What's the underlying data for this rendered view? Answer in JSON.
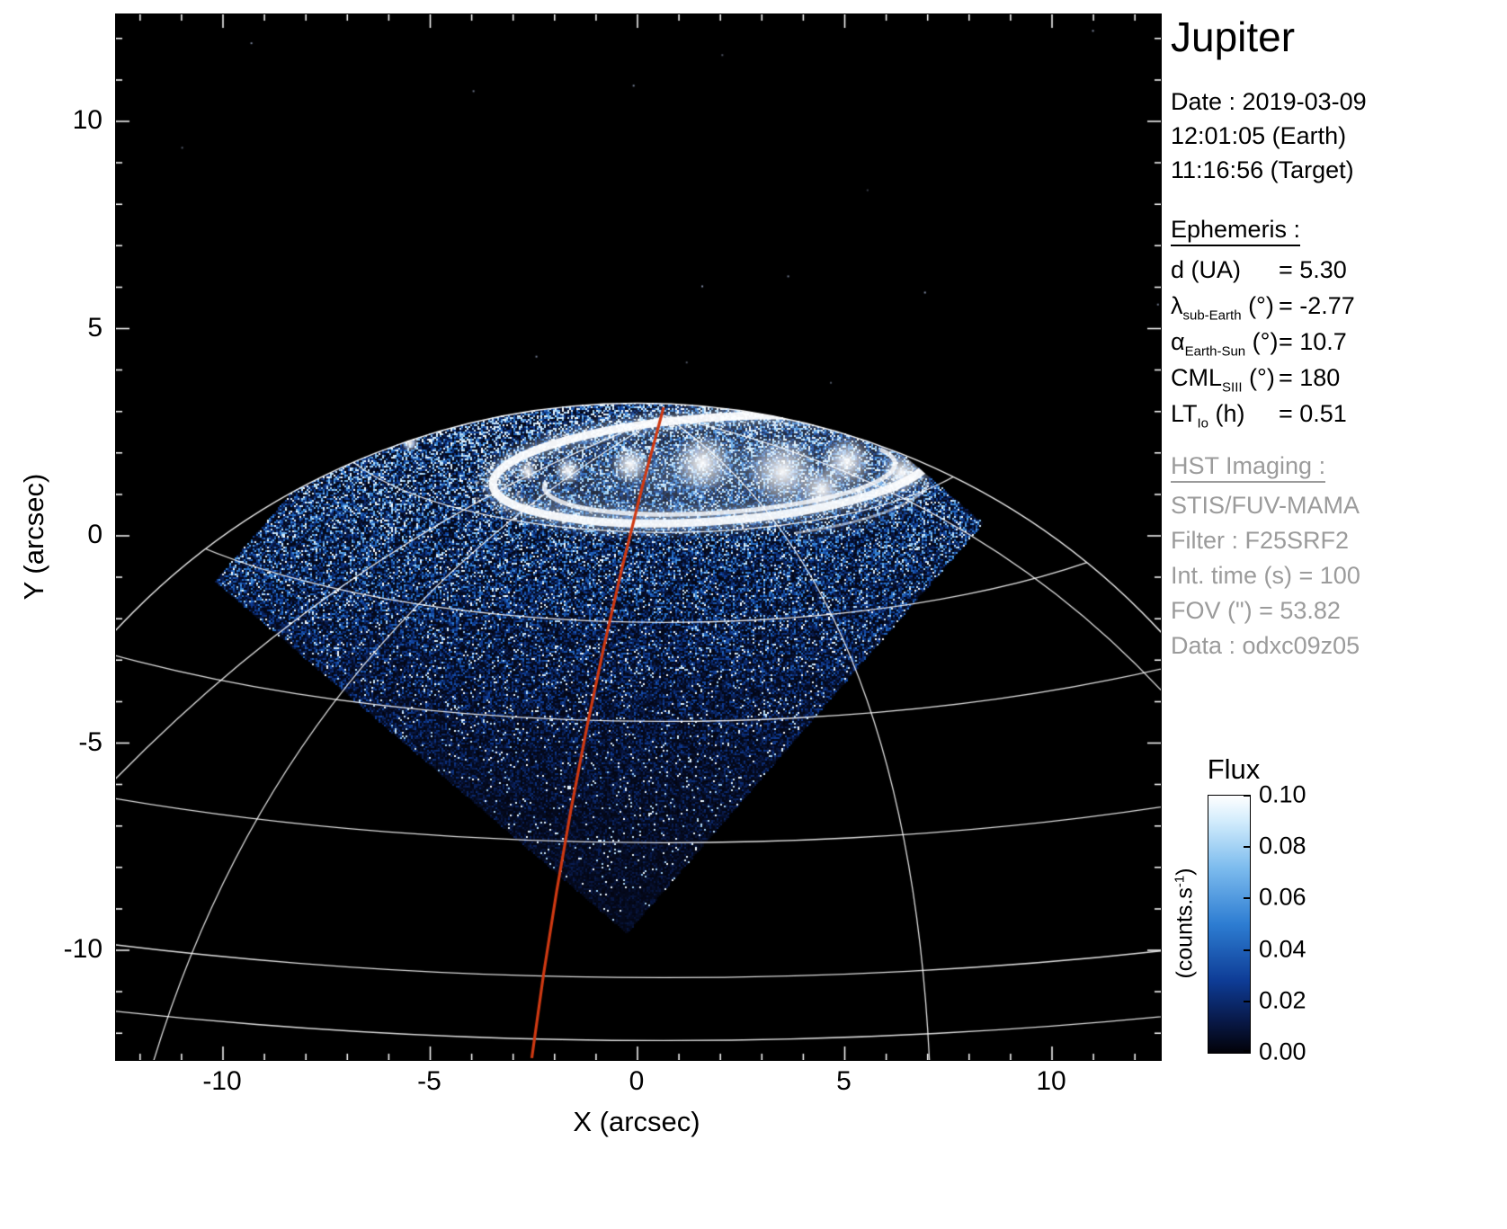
{
  "title": "Jupiter",
  "info_panel": {
    "date_line": "Date : 2019-03-09",
    "time_earth": "12:01:05 (Earth)",
    "time_target": "11:16:56 (Target)",
    "ephemeris_header": "Ephemeris :",
    "ephemeris": [
      {
        "name": "d",
        "sub": "",
        "unit": "(UA)",
        "value": "= 5.30"
      },
      {
        "name": "λ",
        "sub": "sub-Earth",
        "unit": "(°)",
        "value": "= -2.77"
      },
      {
        "name": "α",
        "sub": "Earth-Sun",
        "unit": "(°)",
        "value": "= 10.7"
      },
      {
        "name": "CML",
        "sub": "SIII",
        "unit": "(°)",
        "value": "= 180"
      },
      {
        "name": "LT",
        "sub": "Io",
        "unit": "(h)",
        "value": "= 0.51"
      }
    ],
    "hst_header": "HST Imaging :",
    "hst_lines": [
      "STIS/FUV-MAMA",
      "Filter : F25SRF2",
      "Int. time (s) = 100",
      "FOV (\") = 53.82",
      "Data : odxc09z05"
    ],
    "muted_color": "#9b9b9b"
  },
  "colorbar": {
    "title": "Flux",
    "unit_prefix": "(counts.s",
    "unit_sup": "-1",
    "unit_suffix": ")",
    "tick_labels": [
      "0.10",
      "0.08",
      "0.06",
      "0.04",
      "0.02",
      "0.00"
    ]
  },
  "chart_data": {
    "type": "heatmap",
    "title": "Jupiter",
    "xlabel": "X (arcsec)",
    "ylabel": "Y (arcsec)",
    "xlim": [
      -12.6,
      12.6
    ],
    "ylim": [
      -12.6,
      12.6
    ],
    "x_ticks": [
      -10,
      -5,
      0,
      5,
      10
    ],
    "y_ticks": [
      -10,
      -5,
      0,
      5,
      10
    ],
    "grid": false,
    "colorbar": {
      "label": "Flux",
      "units": "counts.s-1",
      "min": 0.0,
      "max": 0.1,
      "ticks": [
        0.1,
        0.08,
        0.06,
        0.04,
        0.02,
        0.0
      ]
    },
    "colormap_stops": [
      "#020208",
      "#081846",
      "#0e3c96",
      "#2d7dd2",
      "#7dbcee",
      "#d2ecfc",
      "#ffffff"
    ],
    "features": {
      "detector_fov_corners_arcsec": [
        [
          -10.2,
          -1.1
        ],
        [
          -0.25,
          -9.6
        ],
        [
          8.35,
          0.3
        ],
        [
          -1.6,
          8.8
        ]
      ],
      "planet_limb_circle": {
        "center_arcsec": [
          0,
          -14.0
        ],
        "radius_arcsec": 17.2
      },
      "pole_arcsec": [
        0.65,
        2.9
      ],
      "auroral_oval": {
        "center_arcsec": [
          1.8,
          1.6
        ],
        "semi_axes_arcsec": [
          5.3,
          1.25
        ],
        "tilt_deg": -4
      },
      "central_meridian": {
        "color": "#cf3912",
        "top_arcsec": [
          0.63,
          3.1
        ],
        "bottom_arcsec": [
          -2.55,
          -12.6
        ]
      },
      "grid_color": "#ffffff"
    }
  }
}
